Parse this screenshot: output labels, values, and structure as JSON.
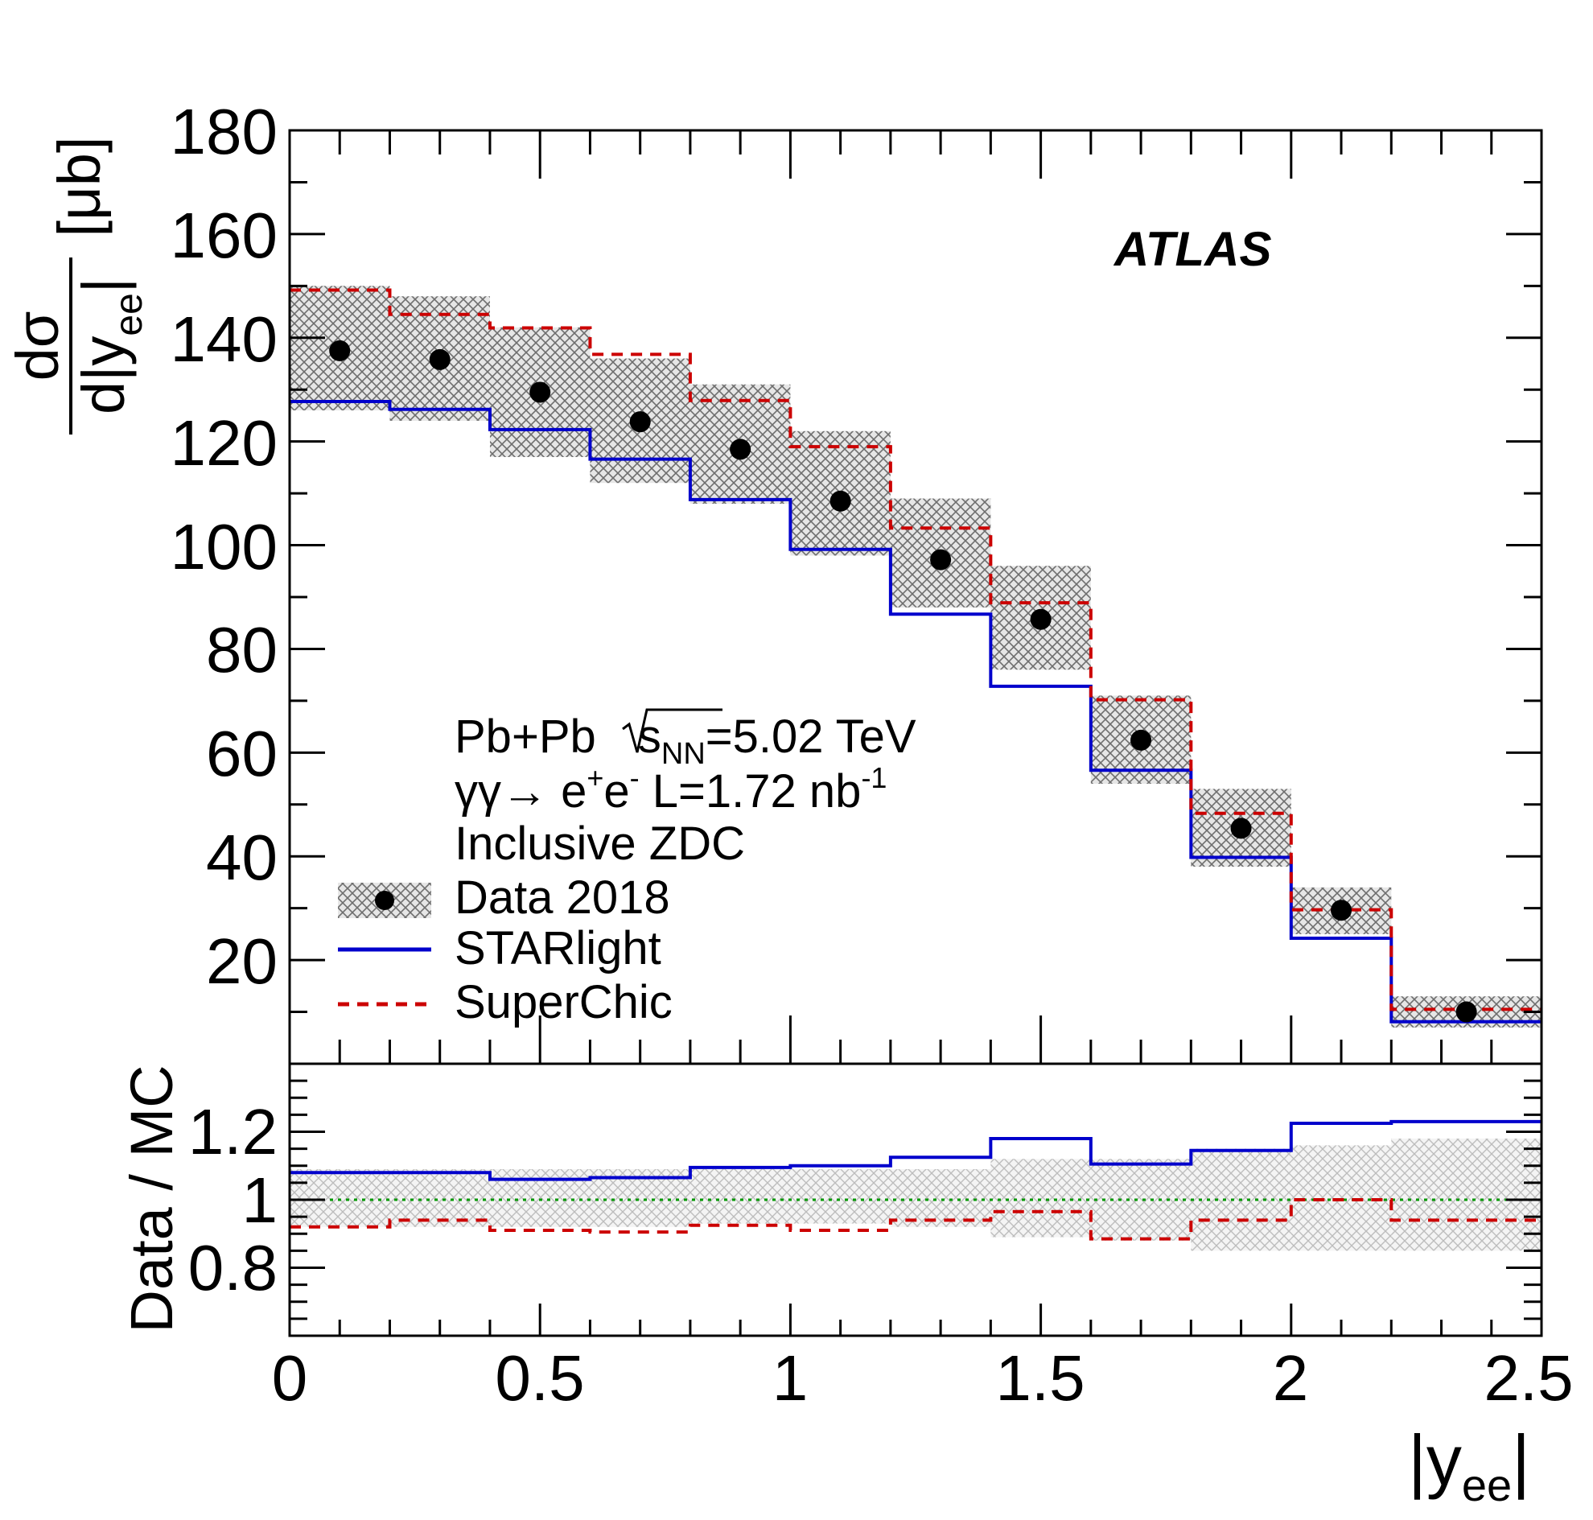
{
  "chart_data": {
    "type": "histogram",
    "xlim": [
      0,
      2.5
    ],
    "ylim": [
      0,
      180
    ],
    "ratio_ylim": [
      0.6,
      1.4
    ],
    "x_ticks": [
      "0",
      "0.5",
      "1",
      "1.5",
      "2",
      "2.5"
    ],
    "y_ticks": [
      "20",
      "40",
      "60",
      "80",
      "100",
      "120",
      "140",
      "160",
      "180"
    ],
    "ratio_ticks": [
      "0.8",
      "1",
      "1.2"
    ],
    "xlabel": {
      "main": "|y",
      "sub": "ee",
      "close": "|"
    },
    "ylabel": {
      "numerator": "dσ",
      "denominator_main": "d|y",
      "denominator_sub": "ee",
      "denominator_close": "|",
      "unit": "[μb]"
    },
    "ratio_ylabel": "Data / MC",
    "bin_edges": [
      0,
      0.2,
      0.4,
      0.6,
      0.8,
      1.0,
      1.2,
      1.4,
      1.6,
      1.8,
      2.0,
      2.2,
      2.5
    ],
    "series": [
      {
        "name": "Data 2018",
        "style": "points",
        "x": [
          0.1,
          0.3,
          0.5,
          0.7,
          0.9,
          1.1,
          1.3,
          1.5,
          1.7,
          1.9,
          2.1,
          2.35
        ],
        "values": [
          137.5,
          135.8,
          129.5,
          123.8,
          118.5,
          108.5,
          97.2,
          85.7,
          62.4,
          45.4,
          29.6,
          10.0
        ],
        "band_low": [
          126,
          124,
          117,
          112,
          108,
          98,
          88,
          76,
          54,
          38,
          25,
          7
        ],
        "band_high": [
          150,
          148,
          142,
          136,
          131,
          122,
          109,
          96,
          71,
          53,
          34,
          13
        ],
        "color": "#000000",
        "band_color": "#8c8c8c"
      },
      {
        "name": "STARlight",
        "style": "step-solid",
        "values": [
          127.7,
          126.2,
          122.3,
          116.6,
          108.8,
          99.2,
          86.7,
          72.8,
          56.6,
          39.8,
          24.2,
          8.1
        ],
        "color": "#0000cc"
      },
      {
        "name": "SuperChic",
        "style": "step-dashed",
        "values": [
          149.2,
          144.5,
          141.9,
          136.8,
          127.9,
          119.0,
          103.3,
          88.9,
          70.2,
          48.3,
          29.7,
          10.5
        ],
        "color": "#cc0000"
      }
    ],
    "ratio": {
      "reference_line": 1.0,
      "reference_color": "#009900",
      "band_low": [
        0.92,
        0.92,
        0.92,
        0.92,
        0.93,
        0.93,
        0.92,
        0.89,
        0.88,
        0.85,
        0.85,
        0.85
      ],
      "band_high": [
        1.09,
        1.09,
        1.09,
        1.09,
        1.09,
        1.09,
        1.09,
        1.12,
        1.12,
        1.15,
        1.16,
        1.18
      ],
      "series": [
        {
          "name": "STARlight",
          "values": [
            1.08,
            1.08,
            1.06,
            1.065,
            1.095,
            1.1,
            1.125,
            1.18,
            1.105,
            1.145,
            1.225,
            1.23
          ],
          "color": "#0000cc"
        },
        {
          "name": "SuperChic",
          "values": [
            0.92,
            0.94,
            0.91,
            0.905,
            0.925,
            0.91,
            0.94,
            0.965,
            0.885,
            0.94,
            1.0,
            0.94
          ],
          "color": "#cc0000"
        }
      ]
    },
    "legend": {
      "entries": [
        "Data 2018",
        "STARlight",
        "SuperChic"
      ],
      "placement": "bottom-left"
    },
    "annotations": {
      "atlas": "ATLAS",
      "line1_prefix": "Pb+Pb ",
      "line1_sqrt": "s",
      "line1_sub": "NN",
      "line1_suffix": "=5.02 TeV",
      "line2_main": "γγ→ e",
      "line2_sup1": "+",
      "line2_mid": "e",
      "line2_sup2": "-",
      "line2_lumi": " L=1.72 nb",
      "line2_sup3": "-1",
      "line3": "Inclusive ZDC"
    }
  }
}
